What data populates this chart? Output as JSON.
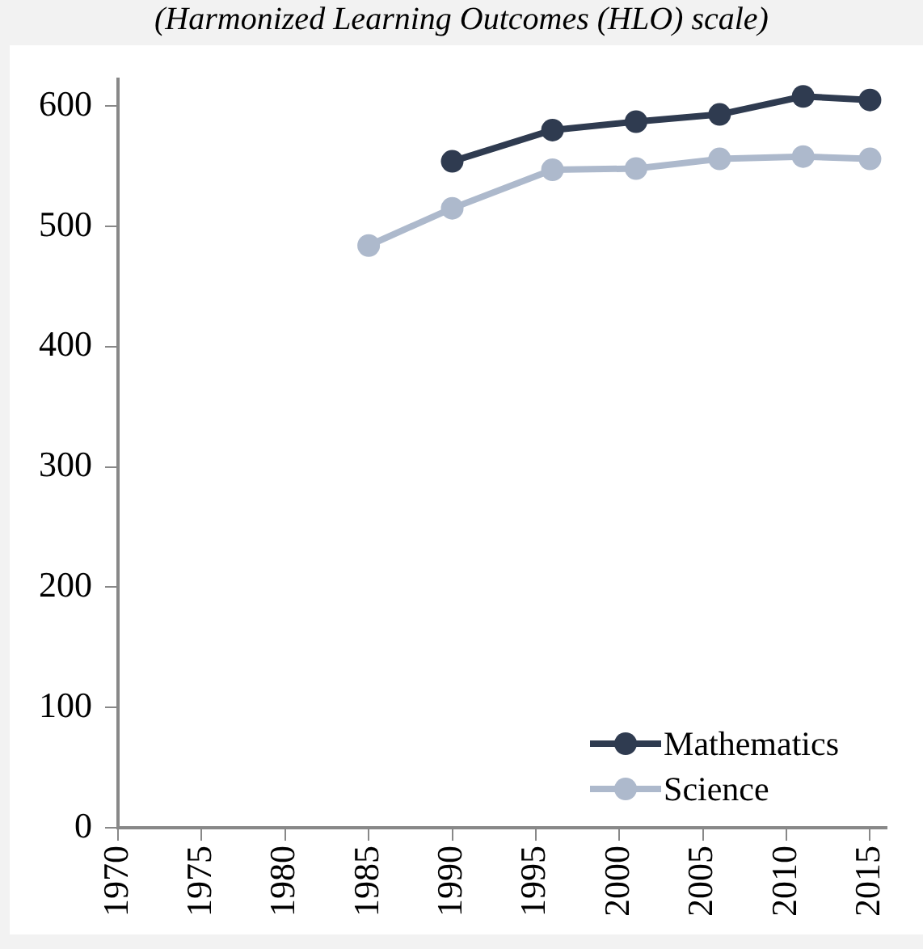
{
  "chart_data": {
    "type": "line",
    "subtitle": "(Harmonized Learning Outcomes (HLO) scale)",
    "series": [
      {
        "name": "Mathematics",
        "color": "#2f3b50",
        "x": [
          1990,
          1996,
          2001,
          2006,
          2011,
          2015
        ],
        "values": [
          554,
          580,
          587,
          593,
          608,
          605
        ]
      },
      {
        "name": "Science",
        "color": "#adb9cc",
        "x": [
          1985,
          1990,
          1996,
          2001,
          2006,
          2011,
          2015
        ],
        "values": [
          484,
          515,
          547,
          548,
          556,
          558,
          556
        ]
      }
    ],
    "xlim": [
      1970,
      2016
    ],
    "xticks": [
      1970,
      1975,
      1980,
      1985,
      1990,
      1995,
      2000,
      2005,
      2010,
      2015
    ],
    "ylim": [
      0,
      622
    ],
    "yticks": [
      0,
      100,
      200,
      300,
      400,
      500,
      600
    ],
    "grid": false,
    "legend": "bottom right",
    "marker": "circle",
    "line_style": "solid"
  }
}
